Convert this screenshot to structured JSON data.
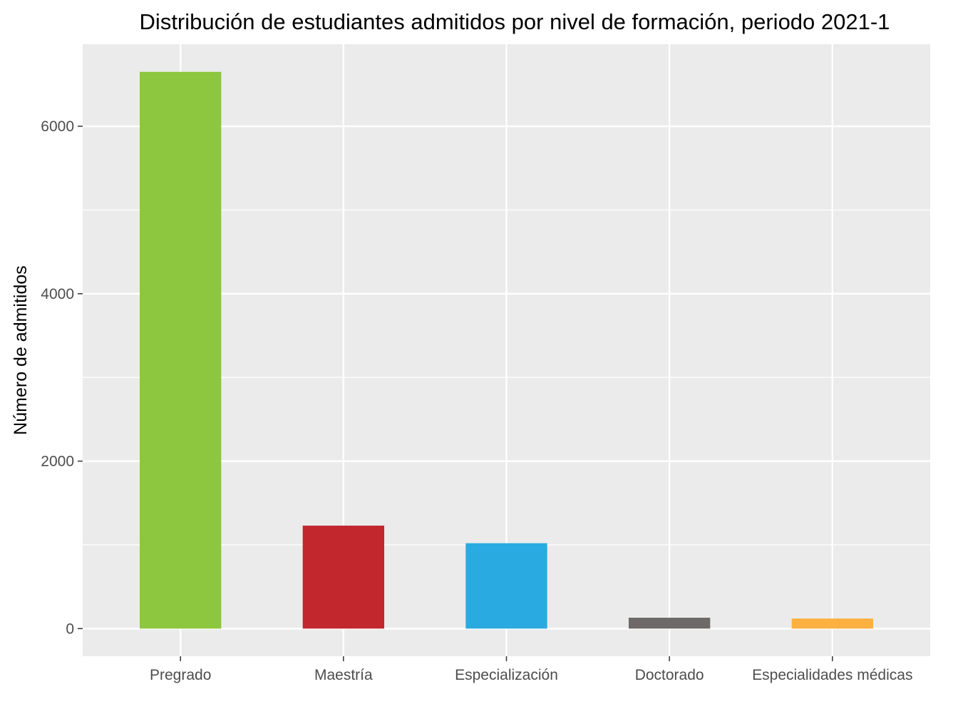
{
  "chart_data": {
    "type": "bar",
    "title": "Distribución de estudiantes admitidos por nivel de formación, periodo 2021-1",
    "xlabel": "",
    "ylabel": "Número de admitidos",
    "categories": [
      "Pregrado",
      "Maestría",
      "Especialización",
      "Doctorado",
      "Especialidades médicas"
    ],
    "values": [
      6650,
      1230,
      1020,
      130,
      120
    ],
    "colors": [
      "#8dc63f",
      "#c1272d",
      "#29abe2",
      "#6d6968",
      "#fbb040"
    ],
    "ylim": [
      -330,
      6980
    ],
    "yticks": [
      0,
      2000,
      4000,
      6000
    ],
    "ytick_labels": [
      "0",
      "2000",
      "4000",
      "6000"
    ],
    "grid": true,
    "panel_color": "#ebebeb",
    "legend": "none"
  }
}
